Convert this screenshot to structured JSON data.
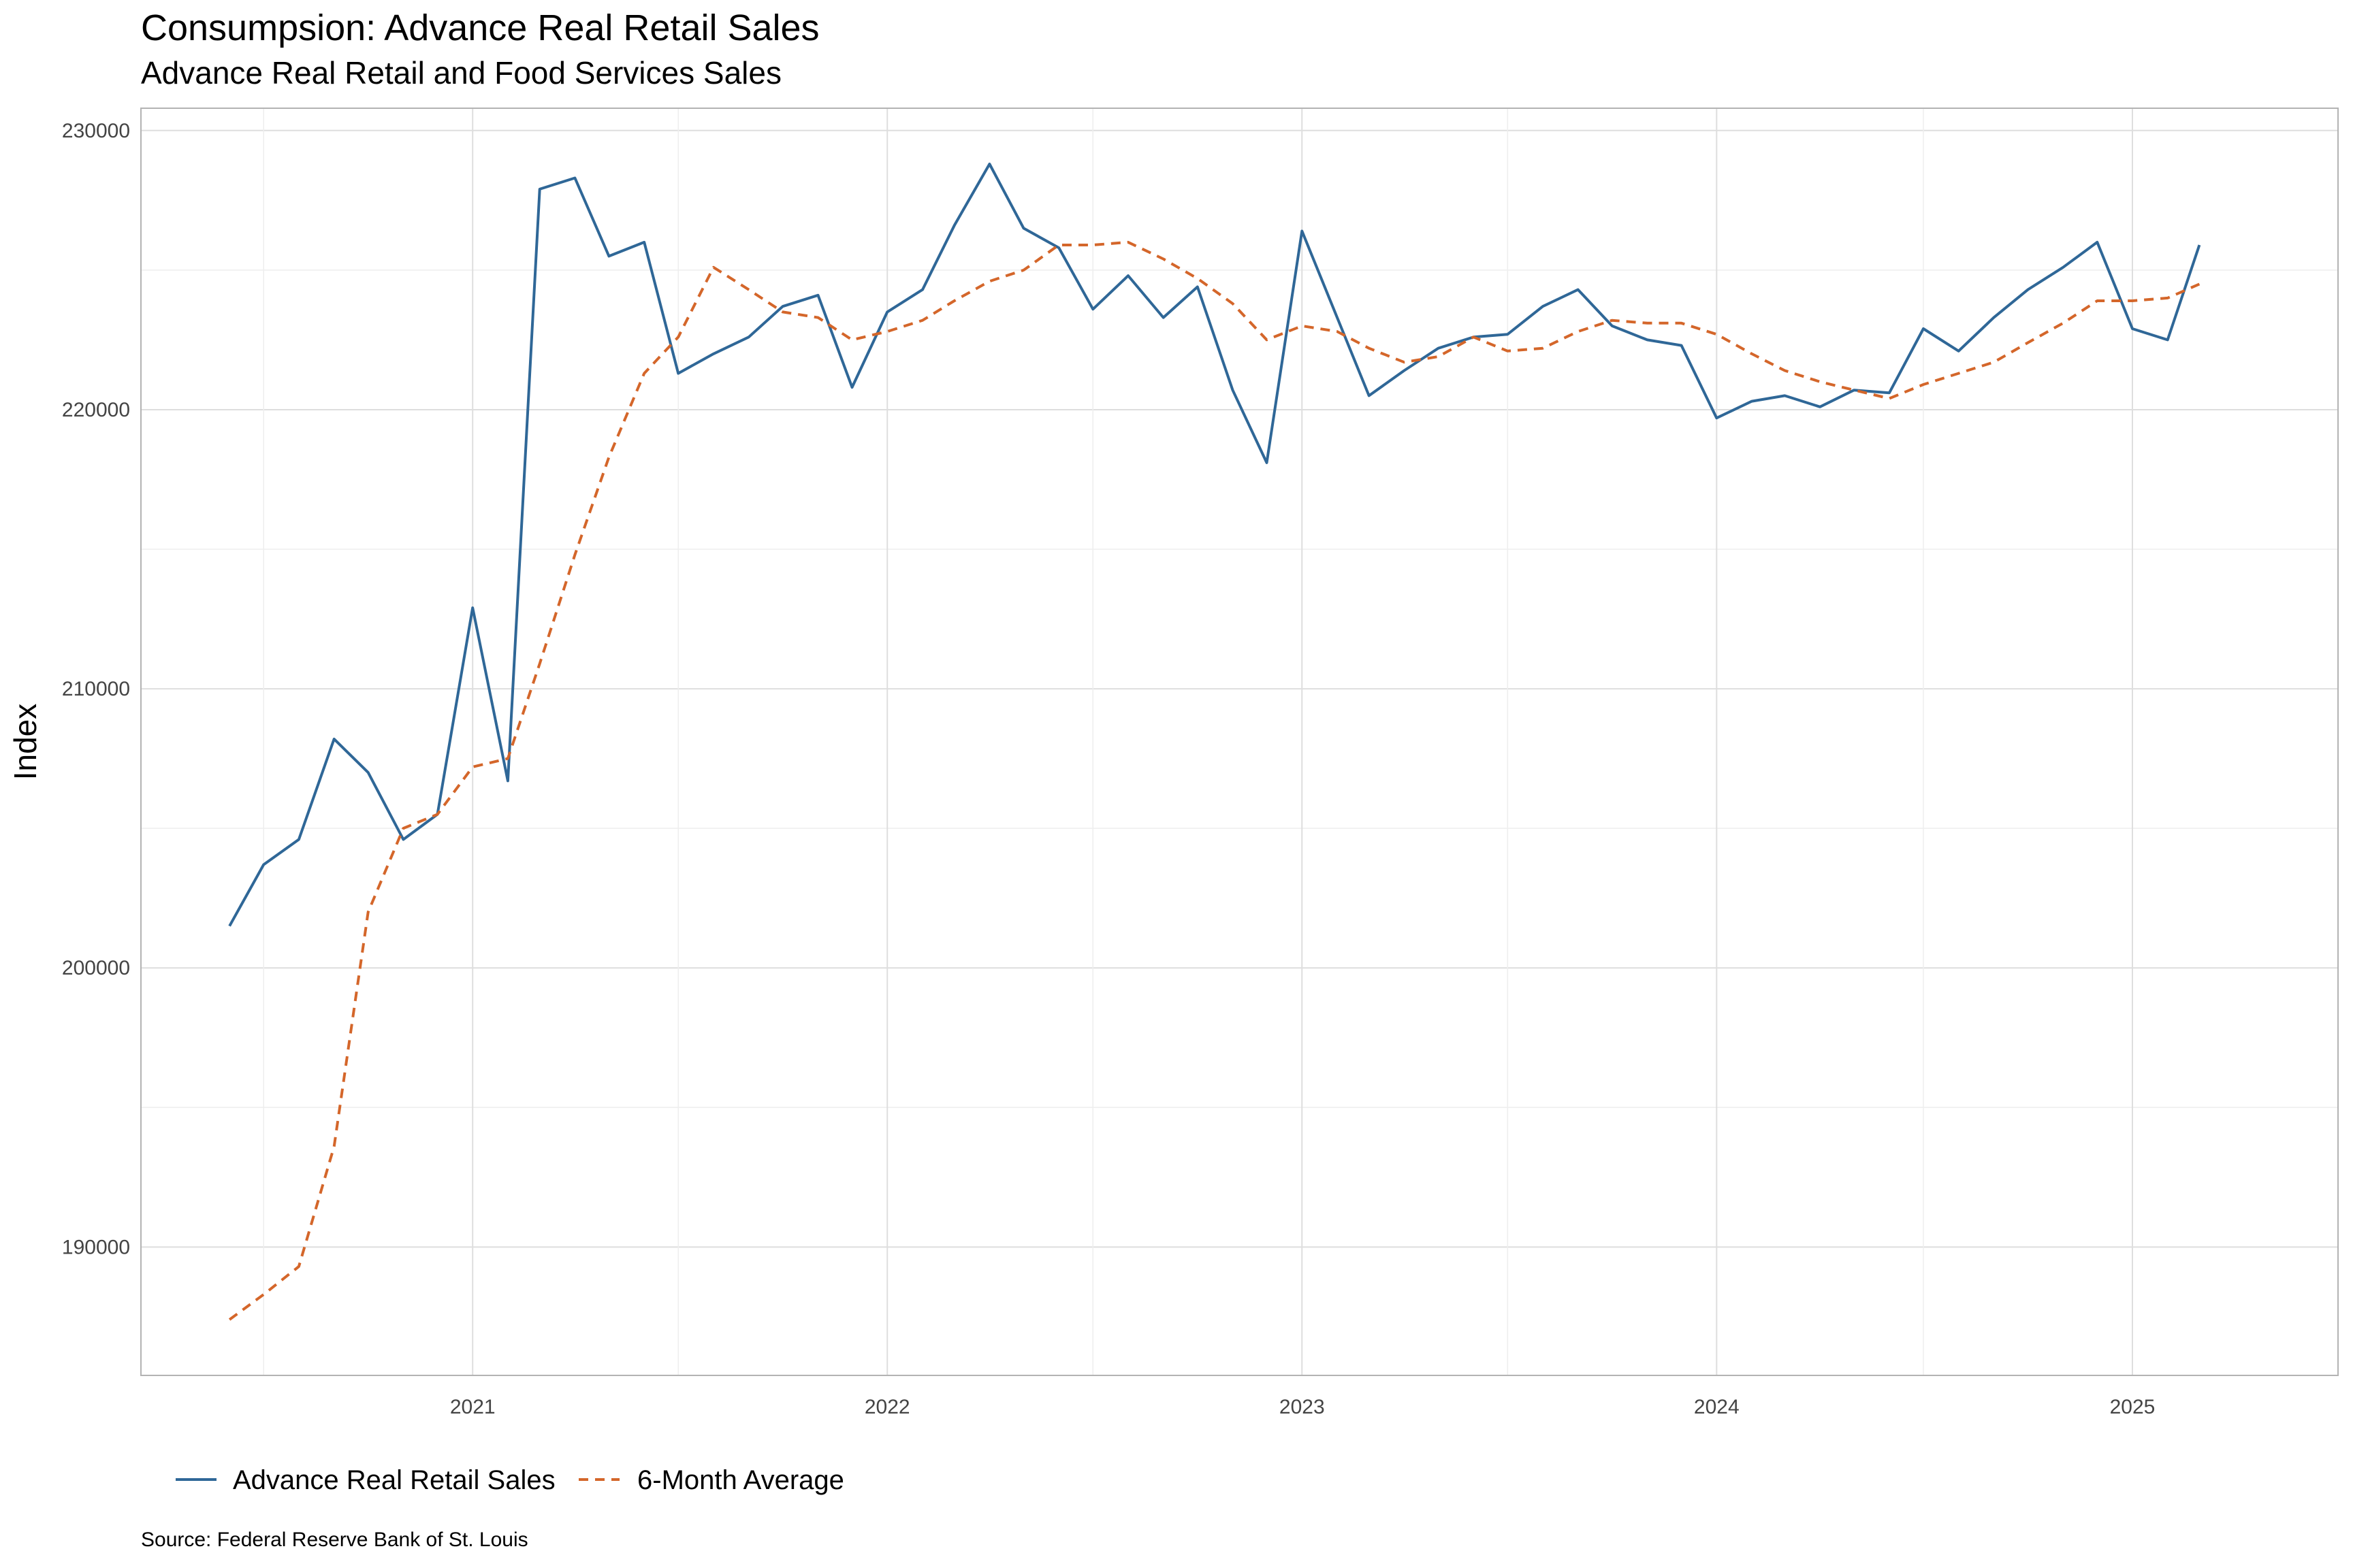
{
  "chart_data": {
    "type": "line",
    "title": "Consumpsion: Advance Real Retail Sales",
    "subtitle": "Advance Real Retail and Food Services Sales",
    "xlabel": "",
    "ylabel": "Index",
    "x_ticks": [
      "2021",
      "2022",
      "2023",
      "2024",
      "2025"
    ],
    "y_ticks": [
      190000,
      200000,
      210000,
      220000,
      230000
    ],
    "ylim": [
      185400,
      230800
    ],
    "xlim": [
      "2020-03-15",
      "2025-07-01"
    ],
    "grid": true,
    "legend_position": "bottom-left",
    "source": "Source:  Federal Reserve Bank of St. Louis",
    "colors": {
      "series1": "#2f6797",
      "series2": "#d4662a"
    },
    "x": [
      "2020-06",
      "2020-07",
      "2020-08",
      "2020-09",
      "2020-10",
      "2020-11",
      "2020-12",
      "2021-01",
      "2021-02",
      "2021-03",
      "2021-04",
      "2021-05",
      "2021-06",
      "2021-07",
      "2021-08",
      "2021-09",
      "2021-10",
      "2021-11",
      "2021-12",
      "2022-01",
      "2022-02",
      "2022-03",
      "2022-04",
      "2022-05",
      "2022-06",
      "2022-07",
      "2022-08",
      "2022-09",
      "2022-10",
      "2022-11",
      "2022-12",
      "2023-01",
      "2023-02",
      "2023-03",
      "2023-04",
      "2023-05",
      "2023-06",
      "2023-07",
      "2023-08",
      "2023-09",
      "2023-10",
      "2023-11",
      "2023-12",
      "2024-01",
      "2024-02",
      "2024-03",
      "2024-04",
      "2024-05",
      "2024-06",
      "2024-07",
      "2024-08",
      "2024-09",
      "2024-10",
      "2024-11",
      "2024-12",
      "2025-01",
      "2025-02",
      "2025-03"
    ],
    "series": [
      {
        "name": "Advance Real Retail Sales",
        "style": "solid",
        "values": [
          201500,
          203700,
          204600,
          208200,
          207000,
          204600,
          205500,
          212900,
          206700,
          227900,
          228300,
          225500,
          226000,
          221300,
          222000,
          222600,
          223700,
          224100,
          220800,
          223500,
          224300,
          226600,
          228800,
          226500,
          225800,
          223600,
          224800,
          223300,
          224400,
          220700,
          218100,
          226400,
          223300,
          220500,
          221400,
          222200,
          222600,
          222700,
          223700,
          224300,
          223000,
          222500,
          222300,
          219700,
          220300,
          220500,
          220100,
          220700,
          220600,
          222900,
          222100,
          223300,
          224300,
          225100,
          226000,
          222900,
          222500,
          225900
        ]
      },
      {
        "name": "6-Month Average",
        "style": "dashed",
        "values": [
          187400,
          188300,
          189300,
          193600,
          202000,
          205000,
          205500,
          207200,
          207500,
          210900,
          214800,
          218300,
          221300,
          222600,
          225100,
          224300,
          223500,
          223300,
          222500,
          222800,
          223200,
          223900,
          224600,
          225000,
          225900,
          225900,
          226000,
          225400,
          224700,
          223800,
          222500,
          223000,
          222800,
          222200,
          221700,
          221900,
          222600,
          222100,
          222200,
          222800,
          223200,
          223100,
          223100,
          222700,
          222000,
          221400,
          221000,
          220700,
          220400,
          220900,
          221300,
          221700,
          222400,
          223100,
          223900,
          223900,
          224000,
          224500
        ]
      }
    ]
  }
}
